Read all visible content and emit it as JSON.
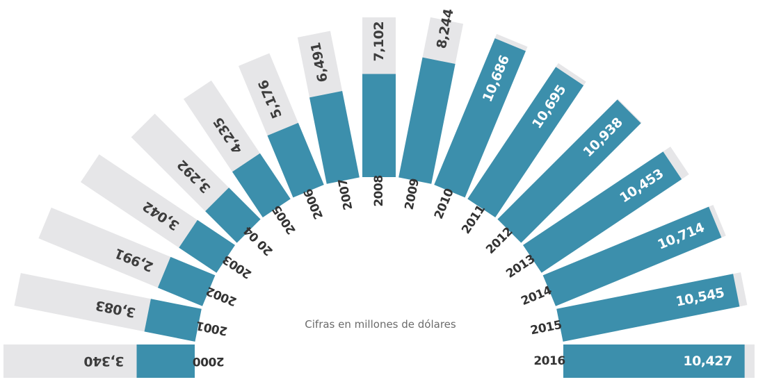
{
  "chart_data": {
    "type": "bar",
    "layout": "radial",
    "note": "Cifras en millones de dólares",
    "colors": {
      "bar": "#3c8fac",
      "track": "#e6e6e8"
    },
    "ylim": [
      0,
      11000
    ],
    "categories": [
      "2000",
      "2001",
      "2002",
      "2003",
      "2004",
      "2005",
      "2006",
      "2007",
      "2008",
      "2009",
      "2010",
      "2011",
      "2012",
      "2013",
      "2014",
      "2015",
      "2016"
    ],
    "values": [
      3340,
      3083,
      2991,
      3042,
      3292,
      4235,
      5176,
      6491,
      7102,
      8244,
      10686,
      10695,
      10938,
      10453,
      10714,
      10545,
      10427
    ],
    "value_labels": [
      "3,340",
      "3,083",
      "2,991",
      "3,042",
      "3,292",
      "4,235",
      "5,176",
      "6,491",
      "7,102",
      "8,244",
      "10,686",
      "10,695",
      "10,938",
      "10,453",
      "10,714",
      "10,545",
      "10,427"
    ],
    "year_labels": [
      "2000",
      "2001",
      "2002",
      "2003",
      "20 04",
      "2005",
      "2006",
      "2007",
      "2008",
      "2009",
      "2010",
      "2011",
      "2012",
      "2013",
      "2014",
      "2015",
      "2016"
    ]
  }
}
